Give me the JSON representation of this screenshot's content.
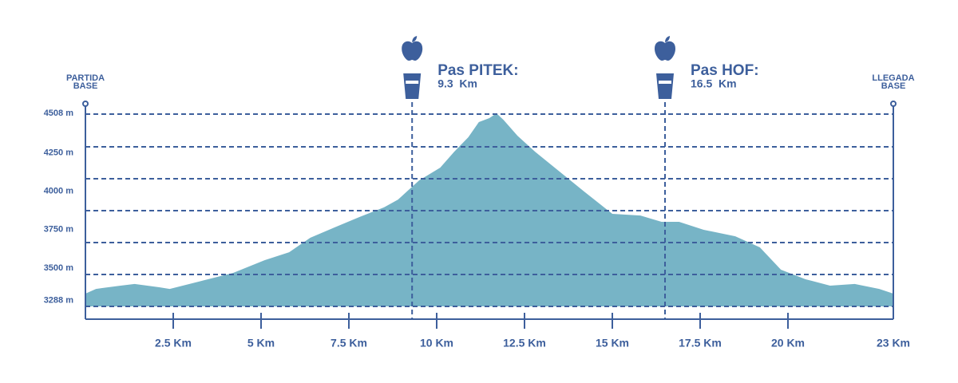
{
  "chart_data": {
    "type": "area",
    "color": "#77b4c6",
    "x": [
      0,
      0.3,
      1,
      1.4,
      2.1,
      2.4,
      3.3,
      4.2,
      5.1,
      5.8,
      6.4,
      7.1,
      7.8,
      8.5,
      8.9,
      9.5,
      10.1,
      10.5,
      10.9,
      11.2,
      11.5,
      11.7,
      11.9,
      12.3,
      12.8,
      13.5,
      14.2,
      15,
      15.8,
      16.4,
      16.9,
      17.6,
      18.5,
      19.2,
      19.8,
      20.5,
      21.2,
      21.9,
      22.6,
      23
    ],
    "values": [
      3333,
      3364,
      3385,
      3396,
      3375,
      3364,
      3416,
      3468,
      3551,
      3603,
      3697,
      3765,
      3832,
      3895,
      3946,
      4071,
      4154,
      4258,
      4352,
      4451,
      4477,
      4508,
      4466,
      4362,
      4258,
      4128,
      3998,
      3853,
      3842,
      3801,
      3801,
      3749,
      3707,
      3635,
      3489,
      3427,
      3385,
      3396,
      3364,
      3333
    ],
    "xlim": [
      0,
      23
    ],
    "ylim": [
      3250,
      4508
    ],
    "xticks": [
      {
        "value": 2.5,
        "label": "2.5 Km"
      },
      {
        "value": 5,
        "label": "5 Km"
      },
      {
        "value": 7.5,
        "label": "7.5 Km"
      },
      {
        "value": 10,
        "label": "10 Km"
      },
      {
        "value": 12.5,
        "label": "12.5 Km"
      },
      {
        "value": 15,
        "label": "15 Km"
      },
      {
        "value": 17.5,
        "label": "17.5 Km"
      },
      {
        "value": 20,
        "label": "20 Km"
      },
      {
        "value": 23,
        "label": "23 Km"
      }
    ],
    "yticks": [
      {
        "value": 4508,
        "label": "4508 m"
      },
      {
        "value": 4250,
        "label": "4250 m"
      },
      {
        "value": 4000,
        "label": "4000 m"
      },
      {
        "value": 3750,
        "label": "3750 m"
      },
      {
        "value": 3500,
        "label": "3500 m"
      },
      {
        "value": 3288,
        "label": "3288 m"
      }
    ],
    "start_label": [
      "PARTIDA",
      "BASE"
    ],
    "end_label": [
      "LLEGADA",
      "BASE"
    ],
    "waypoints": [
      {
        "x": 9.3,
        "label": "Pas PITEK:",
        "distance_label": "9.3  Km"
      },
      {
        "x": 16.5,
        "label": "Pas HOF:",
        "distance_label": "16.5  Km"
      }
    ]
  }
}
